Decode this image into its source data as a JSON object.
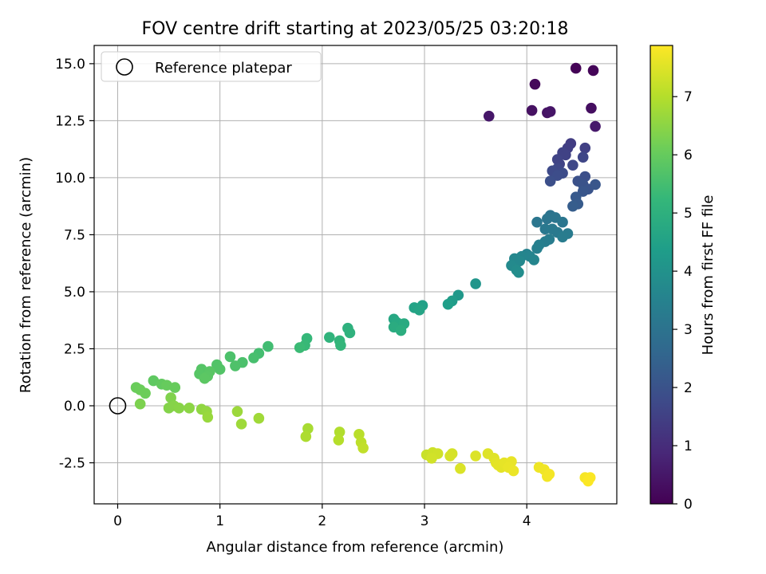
{
  "chart_data": {
    "type": "scatter",
    "title": "FOV centre drift starting at 2023/05/25 03:20:18",
    "xlabel": "Angular distance from reference (arcmin)",
    "ylabel": "Rotation from reference (arcmin)",
    "xlim": [
      -0.23,
      4.88
    ],
    "ylim": [
      -4.3,
      15.8
    ],
    "xticks": [
      0,
      1,
      2,
      3,
      4
    ],
    "yticks": [
      -2.5,
      0.0,
      2.5,
      5.0,
      7.5,
      10.0,
      12.5,
      15.0
    ],
    "grid": true,
    "legend": {
      "position": "top-left",
      "entries": [
        "Reference platepar"
      ]
    },
    "reference_point": {
      "name": "Reference platepar",
      "x": 0.0,
      "y": 0.0,
      "marker": "hollow-circle"
    },
    "colorbar": {
      "label": "Hours from first FF file",
      "colormap": "viridis",
      "range": [
        0,
        7.88
      ],
      "ticks": [
        0,
        1,
        2,
        3,
        4,
        5,
        6,
        7
      ]
    },
    "colormap_stops": [
      "#440154",
      "#482878",
      "#3e4a89",
      "#31688e",
      "#26828e",
      "#1f9e89",
      "#35b779",
      "#6ece58",
      "#b5de2b",
      "#fde725"
    ],
    "points": [
      {
        "x": 4.48,
        "y": 14.8,
        "h": 0.05
      },
      {
        "x": 4.65,
        "y": 14.7,
        "h": 0.1
      },
      {
        "x": 4.08,
        "y": 14.1,
        "h": 0.15
      },
      {
        "x": 4.63,
        "y": 13.05,
        "h": 0.3
      },
      {
        "x": 4.05,
        "y": 12.95,
        "h": 0.35
      },
      {
        "x": 4.2,
        "y": 12.85,
        "h": 0.4
      },
      {
        "x": 4.23,
        "y": 12.9,
        "h": 0.45
      },
      {
        "x": 3.63,
        "y": 12.7,
        "h": 0.5
      },
      {
        "x": 4.67,
        "y": 12.25,
        "h": 0.55
      },
      {
        "x": 4.43,
        "y": 11.5,
        "h": 1.4
      },
      {
        "x": 4.4,
        "y": 11.3,
        "h": 1.45
      },
      {
        "x": 4.57,
        "y": 11.3,
        "h": 1.5
      },
      {
        "x": 4.35,
        "y": 11.1,
        "h": 1.55
      },
      {
        "x": 4.38,
        "y": 11.0,
        "h": 1.55
      },
      {
        "x": 4.3,
        "y": 10.8,
        "h": 1.6
      },
      {
        "x": 4.32,
        "y": 10.6,
        "h": 1.6
      },
      {
        "x": 4.55,
        "y": 10.9,
        "h": 1.65
      },
      {
        "x": 4.45,
        "y": 10.55,
        "h": 1.7
      },
      {
        "x": 4.3,
        "y": 10.4,
        "h": 1.7
      },
      {
        "x": 4.25,
        "y": 10.3,
        "h": 1.75
      },
      {
        "x": 4.35,
        "y": 10.2,
        "h": 1.8
      },
      {
        "x": 4.3,
        "y": 10.1,
        "h": 1.85
      },
      {
        "x": 4.23,
        "y": 9.85,
        "h": 1.9
      },
      {
        "x": 4.57,
        "y": 10.05,
        "h": 1.9
      },
      {
        "x": 4.5,
        "y": 9.85,
        "h": 1.95
      },
      {
        "x": 4.55,
        "y": 9.7,
        "h": 2.0
      },
      {
        "x": 4.6,
        "y": 9.5,
        "h": 2.05
      },
      {
        "x": 4.67,
        "y": 9.7,
        "h": 2.1
      },
      {
        "x": 4.55,
        "y": 9.4,
        "h": 2.1
      },
      {
        "x": 4.48,
        "y": 9.15,
        "h": 2.2
      },
      {
        "x": 4.5,
        "y": 8.85,
        "h": 2.25
      },
      {
        "x": 4.45,
        "y": 8.75,
        "h": 2.3
      },
      {
        "x": 4.23,
        "y": 8.35,
        "h": 3.0
      },
      {
        "x": 4.2,
        "y": 8.2,
        "h": 3.05
      },
      {
        "x": 4.28,
        "y": 8.25,
        "h": 3.05
      },
      {
        "x": 4.1,
        "y": 8.05,
        "h": 3.1
      },
      {
        "x": 4.35,
        "y": 8.05,
        "h": 3.1
      },
      {
        "x": 4.18,
        "y": 7.75,
        "h": 3.15
      },
      {
        "x": 4.25,
        "y": 7.75,
        "h": 3.2
      },
      {
        "x": 4.3,
        "y": 7.6,
        "h": 3.2
      },
      {
        "x": 4.4,
        "y": 7.55,
        "h": 3.25
      },
      {
        "x": 4.35,
        "y": 7.4,
        "h": 3.3
      },
      {
        "x": 4.22,
        "y": 7.3,
        "h": 3.3
      },
      {
        "x": 4.18,
        "y": 7.2,
        "h": 3.35
      },
      {
        "x": 4.12,
        "y": 7.05,
        "h": 3.4
      },
      {
        "x": 4.1,
        "y": 6.9,
        "h": 3.45
      },
      {
        "x": 4.0,
        "y": 6.65,
        "h": 3.5
      },
      {
        "x": 4.03,
        "y": 6.55,
        "h": 3.55
      },
      {
        "x": 3.95,
        "y": 6.55,
        "h": 3.6
      },
      {
        "x": 4.07,
        "y": 6.4,
        "h": 3.6
      },
      {
        "x": 3.88,
        "y": 6.45,
        "h": 3.65
      },
      {
        "x": 3.93,
        "y": 6.35,
        "h": 3.7
      },
      {
        "x": 3.85,
        "y": 6.15,
        "h": 3.75
      },
      {
        "x": 3.9,
        "y": 5.95,
        "h": 3.8
      },
      {
        "x": 3.92,
        "y": 5.85,
        "h": 3.85
      },
      {
        "x": 3.5,
        "y": 5.35,
        "h": 4.1
      },
      {
        "x": 3.33,
        "y": 4.85,
        "h": 4.2
      },
      {
        "x": 3.27,
        "y": 4.6,
        "h": 4.3
      },
      {
        "x": 3.23,
        "y": 4.45,
        "h": 4.4
      },
      {
        "x": 2.98,
        "y": 4.4,
        "h": 4.5
      },
      {
        "x": 2.9,
        "y": 4.3,
        "h": 4.55
      },
      {
        "x": 2.95,
        "y": 4.2,
        "h": 4.6
      },
      {
        "x": 2.7,
        "y": 3.8,
        "h": 4.7
      },
      {
        "x": 2.73,
        "y": 3.65,
        "h": 4.75
      },
      {
        "x": 2.8,
        "y": 3.6,
        "h": 4.8
      },
      {
        "x": 2.7,
        "y": 3.45,
        "h": 4.85
      },
      {
        "x": 2.77,
        "y": 3.3,
        "h": 4.9
      },
      {
        "x": 2.25,
        "y": 3.4,
        "h": 5.0
      },
      {
        "x": 2.27,
        "y": 3.2,
        "h": 5.05
      },
      {
        "x": 2.07,
        "y": 3.0,
        "h": 5.1
      },
      {
        "x": 2.17,
        "y": 2.85,
        "h": 5.15
      },
      {
        "x": 2.18,
        "y": 2.65,
        "h": 5.2
      },
      {
        "x": 1.85,
        "y": 2.95,
        "h": 5.25
      },
      {
        "x": 1.83,
        "y": 2.65,
        "h": 5.3
      },
      {
        "x": 1.78,
        "y": 2.55,
        "h": 5.35
      },
      {
        "x": 1.47,
        "y": 2.6,
        "h": 5.45
      },
      {
        "x": 1.38,
        "y": 2.3,
        "h": 5.5
      },
      {
        "x": 1.33,
        "y": 2.1,
        "h": 5.55
      },
      {
        "x": 1.22,
        "y": 1.9,
        "h": 5.6
      },
      {
        "x": 1.1,
        "y": 2.15,
        "h": 5.62
      },
      {
        "x": 1.15,
        "y": 1.75,
        "h": 5.65
      },
      {
        "x": 0.97,
        "y": 1.8,
        "h": 5.7
      },
      {
        "x": 1.0,
        "y": 1.6,
        "h": 5.72
      },
      {
        "x": 0.82,
        "y": 1.6,
        "h": 5.75
      },
      {
        "x": 0.8,
        "y": 1.4,
        "h": 5.78
      },
      {
        "x": 0.9,
        "y": 1.5,
        "h": 5.8
      },
      {
        "x": 0.88,
        "y": 1.3,
        "h": 5.82
      },
      {
        "x": 0.85,
        "y": 1.2,
        "h": 5.85
      },
      {
        "x": 0.35,
        "y": 1.1,
        "h": 5.9
      },
      {
        "x": 0.43,
        "y": 0.95,
        "h": 5.95
      },
      {
        "x": 0.48,
        "y": 0.9,
        "h": 6.0
      },
      {
        "x": 0.56,
        "y": 0.8,
        "h": 6.02
      },
      {
        "x": 0.18,
        "y": 0.8,
        "h": 6.05
      },
      {
        "x": 0.22,
        "y": 0.7,
        "h": 6.08
      },
      {
        "x": 0.27,
        "y": 0.55,
        "h": 6.1
      },
      {
        "x": 0.22,
        "y": 0.08,
        "h": 6.3
      },
      {
        "x": 0.52,
        "y": 0.35,
        "h": 6.35
      },
      {
        "x": 0.5,
        "y": -0.1,
        "h": 6.4
      },
      {
        "x": 0.55,
        "y": 0.0,
        "h": 6.42
      },
      {
        "x": 0.6,
        "y": -0.1,
        "h": 6.45
      },
      {
        "x": 0.7,
        "y": -0.1,
        "h": 6.5
      },
      {
        "x": 0.82,
        "y": -0.15,
        "h": 6.55
      },
      {
        "x": 0.87,
        "y": -0.25,
        "h": 6.6
      },
      {
        "x": 0.88,
        "y": -0.5,
        "h": 6.65
      },
      {
        "x": 1.17,
        "y": -0.25,
        "h": 6.7
      },
      {
        "x": 1.21,
        "y": -0.8,
        "h": 6.72
      },
      {
        "x": 1.38,
        "y": -0.55,
        "h": 6.75
      },
      {
        "x": 1.86,
        "y": -1.0,
        "h": 6.85
      },
      {
        "x": 1.84,
        "y": -1.35,
        "h": 6.9
      },
      {
        "x": 2.17,
        "y": -1.15,
        "h": 6.95
      },
      {
        "x": 2.16,
        "y": -1.5,
        "h": 7.0
      },
      {
        "x": 2.36,
        "y": -1.25,
        "h": 7.05
      },
      {
        "x": 2.38,
        "y": -1.6,
        "h": 7.1
      },
      {
        "x": 2.4,
        "y": -1.85,
        "h": 7.15
      },
      {
        "x": 3.02,
        "y": -2.15,
        "h": 7.25
      },
      {
        "x": 3.08,
        "y": -2.05,
        "h": 7.3
      },
      {
        "x": 3.13,
        "y": -2.1,
        "h": 7.32
      },
      {
        "x": 3.07,
        "y": -2.3,
        "h": 7.35
      },
      {
        "x": 3.27,
        "y": -2.1,
        "h": 7.38
      },
      {
        "x": 3.25,
        "y": -2.2,
        "h": 7.4
      },
      {
        "x": 3.35,
        "y": -2.75,
        "h": 7.45
      },
      {
        "x": 3.5,
        "y": -2.2,
        "h": 7.48
      },
      {
        "x": 3.62,
        "y": -2.1,
        "h": 7.5
      },
      {
        "x": 3.68,
        "y": -2.3,
        "h": 7.52
      },
      {
        "x": 3.7,
        "y": -2.5,
        "h": 7.55
      },
      {
        "x": 3.72,
        "y": -2.6,
        "h": 7.57
      },
      {
        "x": 3.75,
        "y": -2.7,
        "h": 7.58
      },
      {
        "x": 3.78,
        "y": -2.5,
        "h": 7.6
      },
      {
        "x": 3.85,
        "y": -2.45,
        "h": 7.62
      },
      {
        "x": 3.82,
        "y": -2.7,
        "h": 7.64
      },
      {
        "x": 3.87,
        "y": -2.85,
        "h": 7.66
      },
      {
        "x": 4.12,
        "y": -2.7,
        "h": 7.7
      },
      {
        "x": 4.17,
        "y": -2.8,
        "h": 7.72
      },
      {
        "x": 4.2,
        "y": -3.1,
        "h": 7.75
      },
      {
        "x": 4.22,
        "y": -3.0,
        "h": 7.77
      },
      {
        "x": 4.57,
        "y": -3.15,
        "h": 7.8
      },
      {
        "x": 4.6,
        "y": -3.2,
        "h": 7.82
      },
      {
        "x": 4.62,
        "y": -3.15,
        "h": 7.84
      },
      {
        "x": 4.6,
        "y": -3.3,
        "h": 7.86
      }
    ]
  }
}
